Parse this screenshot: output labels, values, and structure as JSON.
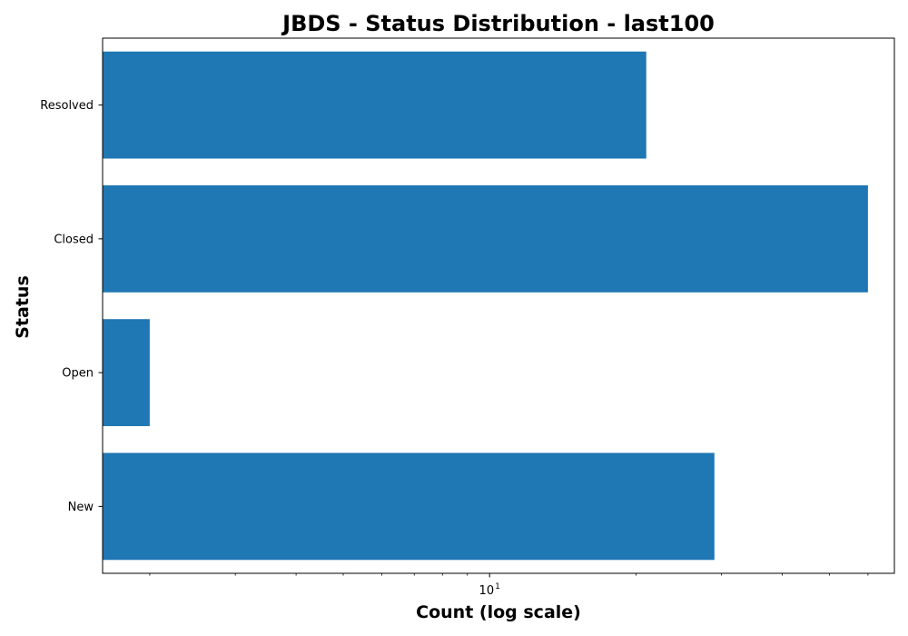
{
  "chart_data": {
    "type": "bar",
    "orientation": "horizontal",
    "title": "JBDS - Status Distribution - last100",
    "xlabel": "Count (log scale)",
    "ylabel": "Status",
    "x_scale": "log",
    "xlim": [
      1.6,
      68
    ],
    "categories": [
      "Resolved",
      "Closed",
      "Open",
      "New"
    ],
    "values": [
      21,
      60,
      2,
      29
    ],
    "bar_color": "#1f77b4",
    "x_major_ticks": [
      {
        "value": 10,
        "base": "10",
        "exponent": "1"
      }
    ],
    "x_minor_ticks": [
      2,
      3,
      4,
      5,
      6,
      7,
      8,
      9,
      20,
      30,
      40,
      50,
      60
    ],
    "grid": false,
    "legend": "none"
  }
}
